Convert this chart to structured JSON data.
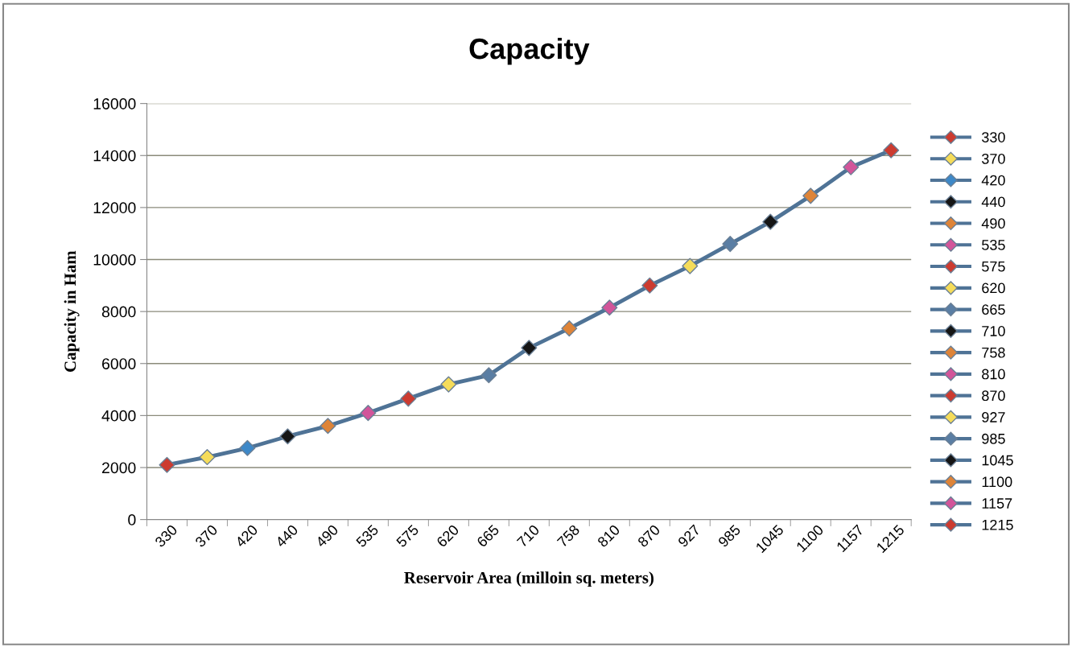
{
  "chart_data": {
    "type": "line",
    "title": "Capacity",
    "xlabel": "Reservoir Area (milloin sq. meters)",
    "ylabel": "Capacity in Ham",
    "categories": [
      "330",
      "370",
      "420",
      "440",
      "490",
      "535",
      "575",
      "620",
      "665",
      "710",
      "758",
      "810",
      "870",
      "927",
      "985",
      "1045",
      "1100",
      "1157",
      "1215"
    ],
    "series": [
      {
        "color": "#4f7396",
        "values": [
          2100,
          2400,
          2750,
          3200,
          3600,
          4100,
          4650,
          5200,
          5550,
          6600,
          7350,
          8150,
          9000,
          9750,
          10600,
          11450,
          12450,
          13550,
          14200
        ],
        "colors": [
          "#cc3b30",
          "#f5dc5a",
          "#3d88c8",
          "#151515",
          "#de8438",
          "#d2559a",
          "#cc3b30",
          "#f5dc5a",
          "#5a7ea4",
          "#151515",
          "#de8438",
          "#d2559a",
          "#cc3b30",
          "#f5dc5a",
          "#5a7ea4",
          "#151515",
          "#de8438",
          "#d2559a",
          "#cc3b30"
        ]
      }
    ],
    "ylim": [
      0,
      16000
    ],
    "yticks": [
      0,
      2000,
      4000,
      6000,
      8000,
      10000,
      12000,
      14000,
      16000
    ],
    "grid": "y",
    "marker": "diamond",
    "line_style": "solid"
  }
}
